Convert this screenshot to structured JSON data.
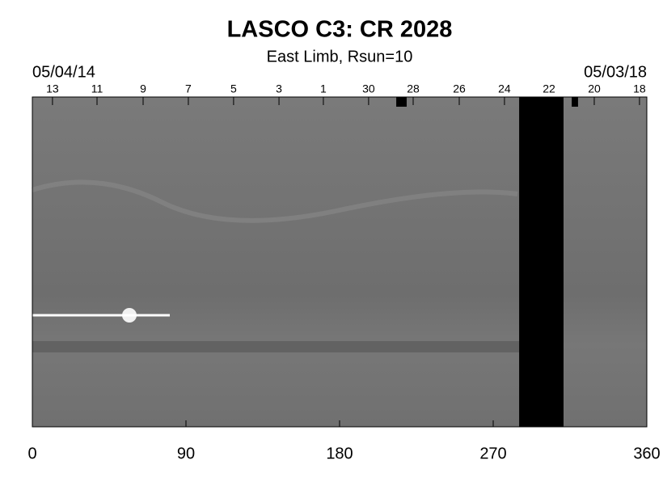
{
  "chart_data": {
    "type": "heatmap",
    "title": "LASCO C3: CR 2028",
    "subtitle": "East Limb, Rsun=10",
    "start_date": "05/04/14",
    "end_date": "05/03/18",
    "xlim": [
      0,
      360
    ],
    "xticks": [
      0,
      90,
      180,
      270,
      360
    ],
    "x2ticks": [
      {
        "value": 11.8,
        "label": "13"
      },
      {
        "value": 37.9,
        "label": "11"
      },
      {
        "value": 64.9,
        "label": "9"
      },
      {
        "value": 91.4,
        "label": "7"
      },
      {
        "value": 117.9,
        "label": "5"
      },
      {
        "value": 144.5,
        "label": "3"
      },
      {
        "value": 170.5,
        "label": "1"
      },
      {
        "value": 197,
        "label": "30"
      },
      {
        "value": 223.1,
        "label": "28"
      },
      {
        "value": 250.1,
        "label": "26"
      },
      {
        "value": 276.6,
        "label": "24"
      },
      {
        "value": 302.7,
        "label": "22"
      },
      {
        "value": 329.2,
        "label": "20"
      },
      {
        "value": 355.7,
        "label": "18"
      }
    ],
    "gaps": [
      [
        285.2,
        311.2
      ]
    ],
    "partial_gaps": [
      [
        213.2,
        219.3
      ],
      [
        316,
        319.7
      ]
    ]
  }
}
